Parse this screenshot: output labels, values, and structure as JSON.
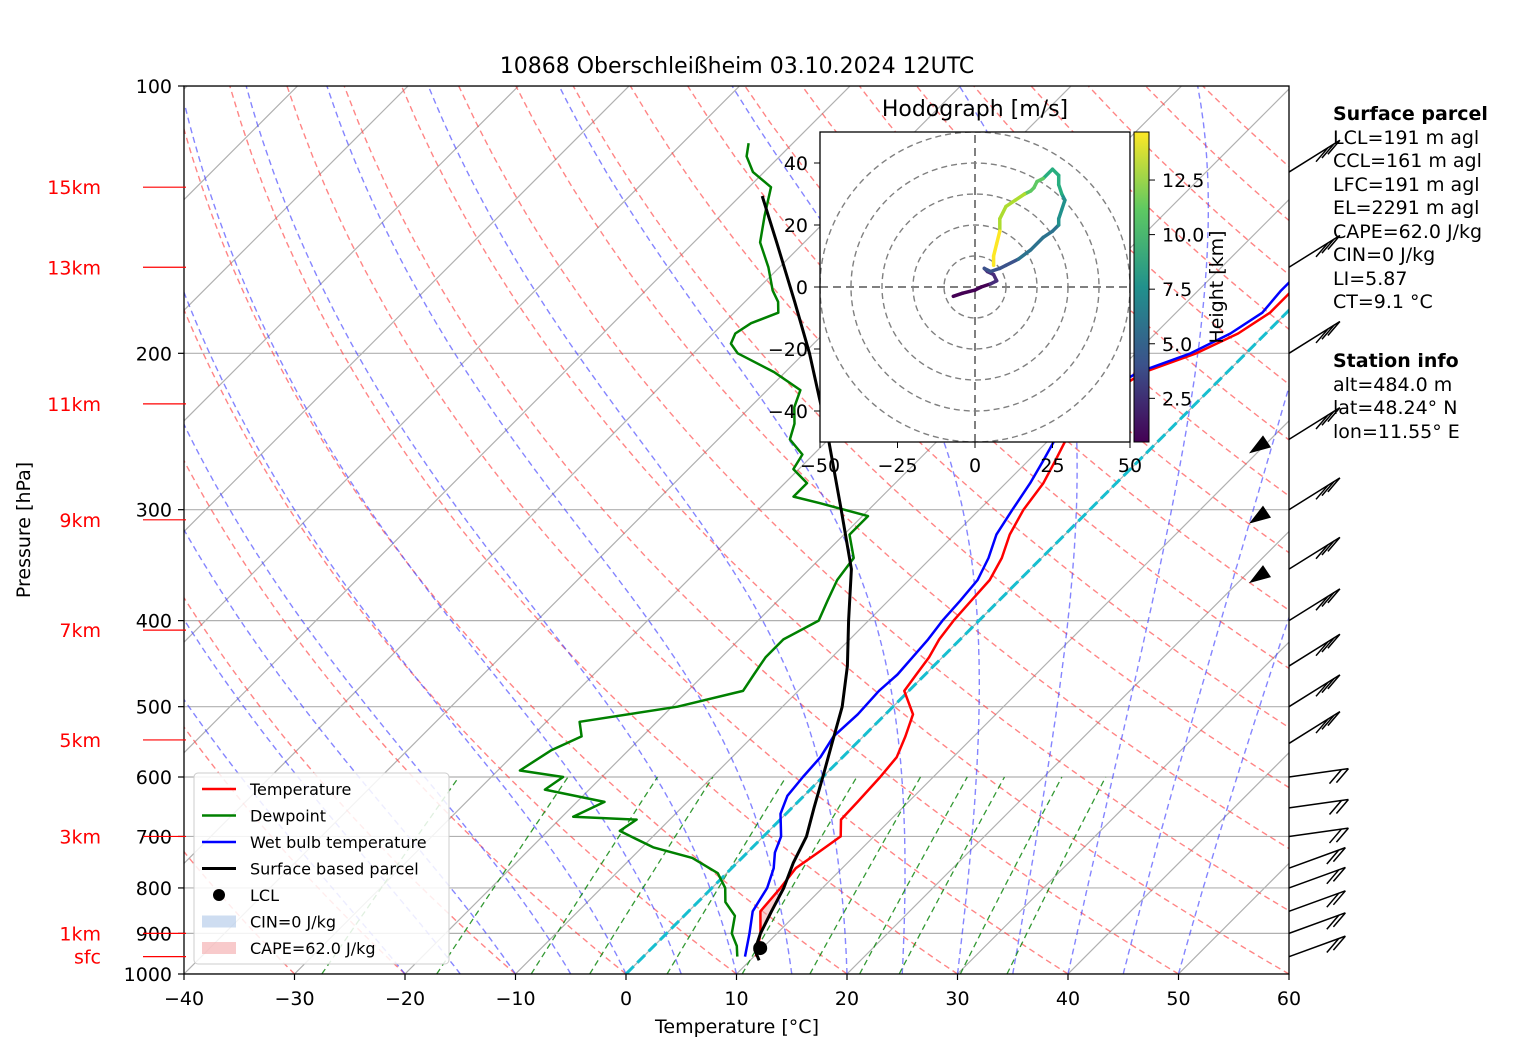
{
  "chart_data": [
    {
      "type": "line",
      "subtype": "skew-T log-P diagram",
      "title": "10868 Oberschleißheim 03.10.2024 12UTC",
      "xlabel": "Temperature [°C]",
      "ylabel": "Pressure [hPa]",
      "xlim": [
        -40,
        60
      ],
      "ylim": [
        1000,
        100
      ],
      "y_scale": "log",
      "grid": true,
      "x_ticks": [
        "−40",
        "−30",
        "−20",
        "−10",
        "0",
        "10",
        "20",
        "30",
        "40",
        "50",
        "60"
      ],
      "y_ticks": [
        "100",
        "200",
        "300",
        "400",
        "500",
        "600",
        "700",
        "800",
        "900",
        "1000"
      ],
      "height_ticks": [
        {
          "label": "15km",
          "p": 130
        },
        {
          "label": "13km",
          "p": 160
        },
        {
          "label": "11km",
          "p": 228
        },
        {
          "label": "9km",
          "p": 308
        },
        {
          "label": "7km",
          "p": 410
        },
        {
          "label": "5km",
          "p": 545
        },
        {
          "label": "3km",
          "p": 700
        },
        {
          "label": "1km",
          "p": 900
        },
        {
          "label": "sfc",
          "p": 956
        }
      ],
      "legend": {
        "position": "lower-left",
        "entries": [
          "Temperature",
          "Dewpoint",
          "Wet bulb temperature",
          "Surface based parcel",
          "LCL",
          "CIN=0 J/kg",
          "CAPE=62.0 J/kg"
        ]
      },
      "series": [
        {
          "name": "Temperature",
          "color": "#ff0000",
          "points": [
            [
              10.2,
              956
            ],
            [
              8.5,
              900
            ],
            [
              6.5,
              850
            ],
            [
              6.2,
              800
            ],
            [
              5.8,
              760
            ],
            [
              6.4,
              730
            ],
            [
              7.0,
              700
            ],
            [
              5.5,
              670
            ],
            [
              5.4,
              640
            ],
            [
              5.2,
              600
            ],
            [
              4.9,
              570
            ],
            [
              3.8,
              540
            ],
            [
              2.5,
              510
            ],
            [
              -0.4,
              480
            ],
            [
              -0.8,
              460
            ],
            [
              -1.2,
              440
            ],
            [
              -1.9,
              420
            ],
            [
              -2.3,
              400
            ],
            [
              -2.5,
              380
            ],
            [
              -2.7,
              360
            ],
            [
              -3.6,
              340
            ],
            [
              -5.0,
              320
            ],
            [
              -6.0,
              300
            ],
            [
              -6.6,
              280
            ],
            [
              -7.5,
              265
            ],
            [
              -8.5,
              250
            ],
            [
              -9.8,
              240
            ],
            [
              -9.5,
              230
            ],
            [
              -8.5,
              220
            ],
            [
              -7.5,
              210
            ],
            [
              -4.5,
              200
            ],
            [
              -2.5,
              190
            ],
            [
              -1.5,
              180
            ],
            [
              -1.5,
              170
            ],
            [
              -1.5,
              160
            ],
            [
              -1.8,
              150
            ],
            [
              -2.0,
              140
            ],
            [
              -1.8,
              130
            ],
            [
              -1.5,
              125
            ],
            [
              -1.5,
              120
            ],
            [
              -1.5,
              116
            ]
          ]
        },
        {
          "name": "Dewpoint",
          "color": "#008000",
          "points": [
            [
              8.5,
              956
            ],
            [
              7.5,
              930
            ],
            [
              5.9,
              900
            ],
            [
              4.6,
              860
            ],
            [
              2.5,
              830
            ],
            [
              1.2,
              800
            ],
            [
              -0.8,
              770
            ],
            [
              -4.5,
              740
            ],
            [
              -9.0,
              720
            ],
            [
              -12.0,
              700
            ],
            [
              -13.5,
              690
            ],
            [
              -13.0,
              670
            ],
            [
              -19.0,
              665
            ],
            [
              -17.5,
              640
            ],
            [
              -24.0,
              620
            ],
            [
              -23.5,
              600
            ],
            [
              -28.0,
              590
            ],
            [
              -27.0,
              560
            ],
            [
              -25.5,
              540
            ],
            [
              -27.0,
              520
            ],
            [
              -19.5,
              500
            ],
            [
              -15.0,
              480
            ],
            [
              -15.5,
              460
            ],
            [
              -16.0,
              440
            ],
            [
              -16.0,
              420
            ],
            [
              -14.5,
              400
            ],
            [
              -15.5,
              380
            ],
            [
              -16.5,
              360
            ],
            [
              -17.0,
              340
            ],
            [
              -19.5,
              320
            ],
            [
              -19.5,
              305
            ],
            [
              -25.0,
              295
            ],
            [
              -28.0,
              290
            ],
            [
              -28.0,
              280
            ],
            [
              -30.5,
              270
            ],
            [
              -31.0,
              260
            ],
            [
              -33.5,
              250
            ],
            [
              -34.5,
              240
            ],
            [
              -36.0,
              230
            ],
            [
              -37.0,
              220
            ],
            [
              -41.0,
              210
            ],
            [
              -46.0,
              200
            ],
            [
              -47.5,
              195
            ],
            [
              -48.0,
              190
            ],
            [
              -47.5,
              185
            ],
            [
              -46.0,
              180
            ],
            [
              -47.0,
              175
            ],
            [
              -48.5,
              170
            ],
            [
              -51.0,
              160
            ],
            [
              -54.0,
              150
            ],
            [
              -56.0,
              140
            ],
            [
              -58.0,
              130
            ],
            [
              -61.0,
              125
            ],
            [
              -63.0,
              120
            ],
            [
              -64.0,
              116
            ]
          ]
        },
        {
          "name": "Wet bulb temperature",
          "color": "#0000ff",
          "points": [
            [
              9.2,
              956
            ],
            [
              7.5,
              900
            ],
            [
              5.8,
              850
            ],
            [
              5.0,
              800
            ],
            [
              3.8,
              760
            ],
            [
              2.5,
              730
            ],
            [
              1.6,
              700
            ],
            [
              -0.5,
              660
            ],
            [
              -1.5,
              630
            ],
            [
              -1.8,
              600
            ],
            [
              -2.0,
              570
            ],
            [
              -2.7,
              540
            ],
            [
              -2.5,
              510
            ],
            [
              -2.7,
              480
            ],
            [
              -2.5,
              460
            ],
            [
              -2.7,
              440
            ],
            [
              -2.9,
              420
            ],
            [
              -3.3,
              400
            ],
            [
              -3.5,
              380
            ],
            [
              -3.8,
              360
            ],
            [
              -4.8,
              340
            ],
            [
              -6.2,
              320
            ],
            [
              -7.0,
              300
            ],
            [
              -7.8,
              280
            ],
            [
              -8.6,
              265
            ],
            [
              -9.5,
              250
            ],
            [
              -10.9,
              240
            ],
            [
              -10.4,
              230
            ],
            [
              -9.3,
              220
            ],
            [
              -8.0,
              210
            ],
            [
              -5.0,
              200
            ],
            [
              -3.2,
              190
            ],
            [
              -2.2,
              180
            ],
            [
              -2.5,
              170
            ],
            [
              -2.5,
              160
            ],
            [
              -3.0,
              150
            ],
            [
              -3.3,
              140
            ],
            [
              -3.0,
              130
            ],
            [
              -2.7,
              125
            ],
            [
              -2.7,
              120
            ],
            [
              -2.5,
              116
            ]
          ]
        },
        {
          "name": "Surface based parcel",
          "color": "#000000",
          "points": [
            [
              10.8,
              965
            ],
            [
              9.5,
              940
            ],
            [
              8.5,
              900
            ],
            [
              7.5,
              850
            ],
            [
              6.5,
              800
            ],
            [
              5.1,
              750
            ],
            [
              3.9,
              700
            ],
            [
              2.0,
              650
            ],
            [
              0.0,
              600
            ],
            [
              -2.2,
              550
            ],
            [
              -4.6,
              500
            ],
            [
              -7.8,
              450
            ],
            [
              -11.8,
              400
            ],
            [
              -16.2,
              350
            ],
            [
              -22.5,
              300
            ],
            [
              -30.0,
              250
            ],
            [
              -39.5,
              200
            ],
            [
              -45.5,
              175
            ],
            [
              -52.5,
              150
            ],
            [
              -58.0,
              133
            ]
          ]
        },
        {
          "name": "LCL",
          "color": "#000000",
          "points": [
            [
              9.8,
              935
            ]
          ]
        }
      ],
      "annotations": [
        "CIN=0 J/kg",
        "CAPE=62.0 J/kg"
      ]
    },
    {
      "type": "line",
      "subtype": "hodograph",
      "title": "Hodograph [m/s]",
      "xlim": [
        -50,
        50
      ],
      "ylim": [
        -50,
        50
      ],
      "x_ticks": [
        "−50",
        "−25",
        "0",
        "25",
        "50"
      ],
      "y_ticks": [
        "40",
        "20",
        "0",
        "−20",
        "−40"
      ],
      "colorbar": {
        "label": "Height [km]",
        "ticks": [
          "2.5",
          "5.0",
          "7.5",
          "10.0",
          "12.5"
        ],
        "range": [
          0.5,
          14.7
        ]
      },
      "series": [
        {
          "name": "",
          "points": [
            [
              -7,
              -3
            ],
            [
              -4,
              -2
            ],
            [
              0,
              -1
            ],
            [
              2,
              0
            ],
            [
              5,
              1
            ],
            [
              7,
              2
            ],
            [
              6,
              4
            ],
            [
              4,
              5
            ],
            [
              3,
              6
            ],
            [
              5,
              5
            ],
            [
              8,
              6
            ],
            [
              10,
              7
            ],
            [
              14,
              9
            ],
            [
              18,
              12
            ],
            [
              22,
              16
            ],
            [
              25,
              18
            ],
            [
              27,
              20
            ],
            [
              27,
              22
            ],
            [
              28,
              25
            ],
            [
              29,
              28
            ],
            [
              28,
              30
            ],
            [
              27,
              33
            ],
            [
              27,
              36
            ],
            [
              25,
              38
            ],
            [
              22,
              35
            ],
            [
              20,
              34
            ],
            [
              19,
              32
            ],
            [
              18,
              31
            ],
            [
              16,
              30
            ],
            [
              13,
              28
            ],
            [
              10,
              26
            ],
            [
              8,
              22
            ],
            [
              8,
              18
            ],
            [
              7,
              14
            ],
            [
              6,
              10
            ],
            [
              6,
              7
            ]
          ]
        }
      ]
    }
  ],
  "wind_barbs": {
    "levels_hpa": [
      956,
      900,
      850,
      800,
      760,
      700,
      650,
      600,
      550,
      500,
      450,
      400,
      350,
      300,
      250,
      200,
      160,
      125
    ]
  },
  "info_panel": {
    "surface_parcel_header": "Surface parcel",
    "surface_parcel": [
      "LCL=191 m agl",
      "CCL=161 m agl",
      "LFC=191 m agl",
      "EL=2291 m agl",
      "CAPE=62.0 J/kg",
      "CIN=0 J/kg",
      "LI=5.87",
      "CT=9.1 °C"
    ],
    "station_header": "Station info",
    "station": [
      "alt=484.0 m",
      "lat=48.24° N",
      "lon=11.55° E"
    ]
  }
}
